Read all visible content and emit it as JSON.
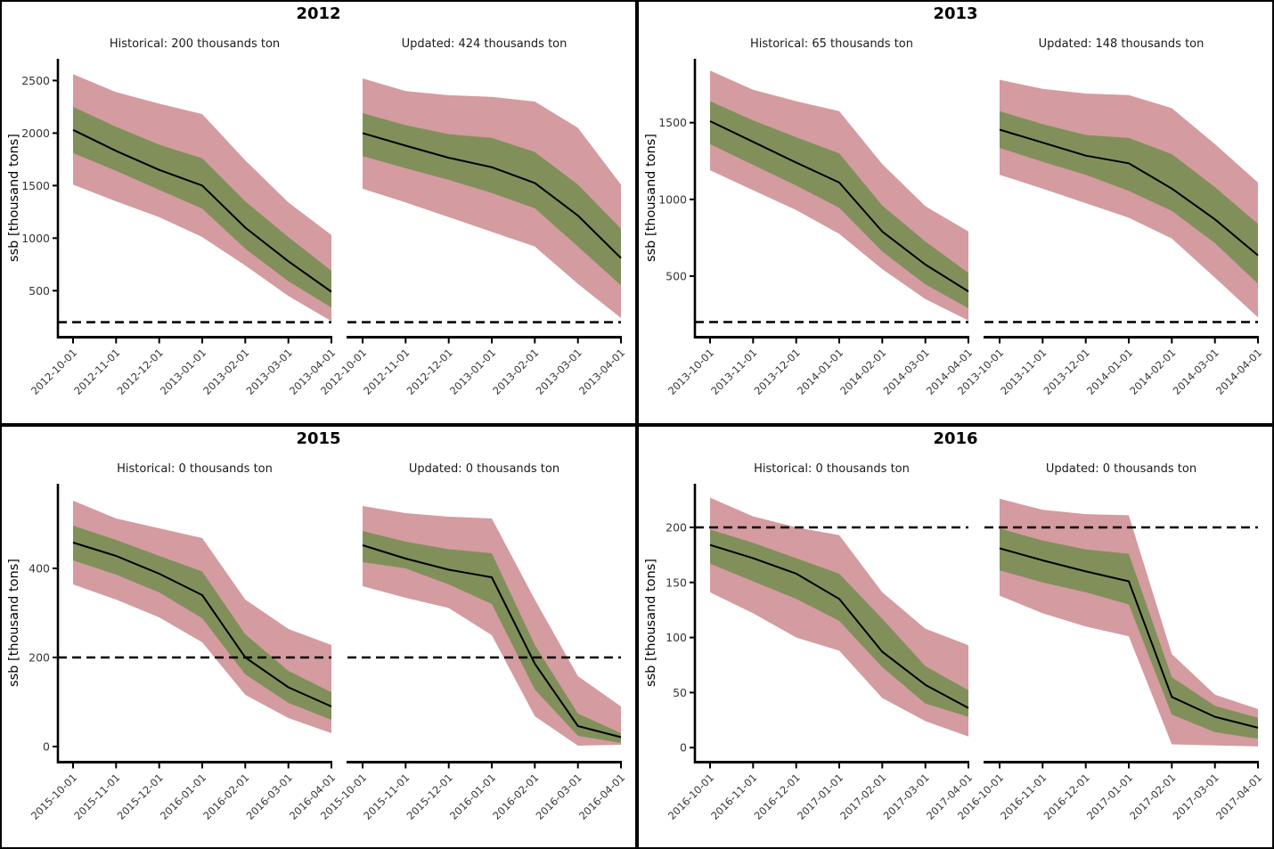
{
  "chart_data": {
    "type": "line",
    "description": "2x2 grid of seasonal ssb forecast fan charts, each year panel holding Historical and Updated scenario subplots with median line, inner and outer uncertainty ribbons and a dashed reference line",
    "ref_line_value": 200,
    "legend_position": "none",
    "grid": "off",
    "colors": {
      "outer_band": "#d49ba0",
      "inner_band": "#81905b",
      "center_line": "#000000",
      "ref_line": "#000000",
      "tick_label": "#363636",
      "axis": "#000000"
    },
    "panels": [
      {
        "year": "2012",
        "ylabel": "ssb [thousand tons]",
        "yticks": [
          500,
          1000,
          1500,
          2000,
          2500
        ],
        "ylim": [
          70,
          2690
        ],
        "subplots": [
          {
            "title": "Historical: 200 thousands ton",
            "x_labels": [
              "2012-10-01",
              "2012-11-01",
              "2012-12-01",
              "2013-01-01",
              "2013-02-01",
              "2013-03-01",
              "2013-04-01"
            ],
            "center": [
              2030,
              1830,
              1650,
              1500,
              1100,
              780,
              490
            ],
            "inner_high": [
              2250,
              2060,
              1890,
              1760,
              1350,
              1010,
              690
            ],
            "inner_low": [
              1810,
              1640,
              1460,
              1280,
              900,
              590,
              340
            ],
            "outer_high": [
              2560,
              2390,
              2280,
              2180,
              1740,
              1340,
              1030
            ],
            "outer_low": [
              1510,
              1350,
              1200,
              1010,
              740,
              450,
              210
            ]
          },
          {
            "title": "Updated: 424 thousands ton",
            "x_labels": [
              "2012-10-01",
              "2012-11-01",
              "2012-12-01",
              "2013-01-01",
              "2013-02-01",
              "2013-03-01",
              "2013-04-01"
            ],
            "center": [
              2000,
              1880,
              1765,
              1675,
              1525,
              1215,
              810
            ],
            "inner_high": [
              2190,
              2075,
              1990,
              1955,
              1820,
              1510,
              1090
            ],
            "inner_low": [
              1780,
              1665,
              1555,
              1430,
              1285,
              920,
              550
            ],
            "outer_high": [
              2520,
              2400,
              2360,
              2345,
              2300,
              2050,
              1510
            ],
            "outer_low": [
              1470,
              1340,
              1200,
              1060,
              920,
              565,
              240
            ]
          }
        ]
      },
      {
        "year": "2013",
        "ylabel": "ssb [thousand tons]",
        "yticks": [
          500,
          1000,
          1500
        ],
        "ylim": [
          110,
          1905
        ],
        "subplots": [
          {
            "title": "Historical: 65 thousands ton",
            "x_labels": [
              "2013-10-01",
              "2013-11-01",
              "2013-12-01",
              "2014-01-01",
              "2014-02-01",
              "2014-03-01",
              "2014-04-01"
            ],
            "center": [
              1510,
              1375,
              1240,
              1110,
              790,
              575,
              400
            ],
            "inner_high": [
              1640,
              1515,
              1405,
              1300,
              960,
              725,
              520
            ],
            "inner_low": [
              1360,
              1225,
              1090,
              945,
              660,
              445,
              290
            ],
            "outer_high": [
              1840,
              1715,
              1640,
              1575,
              1230,
              955,
              790
            ],
            "outer_low": [
              1190,
              1060,
              930,
              775,
              545,
              350,
              210
            ]
          },
          {
            "title": "Updated: 148 thousands ton",
            "x_labels": [
              "2013-10-01",
              "2013-11-01",
              "2013-12-01",
              "2014-01-01",
              "2014-02-01",
              "2014-03-01",
              "2014-04-01"
            ],
            "center": [
              1455,
              1370,
              1285,
              1235,
              1070,
              870,
              635
            ],
            "inner_high": [
              1575,
              1490,
              1420,
              1400,
              1295,
              1080,
              840
            ],
            "inner_low": [
              1335,
              1245,
              1160,
              1055,
              925,
              715,
              450
            ],
            "outer_high": [
              1780,
              1720,
              1690,
              1680,
              1595,
              1360,
              1110
            ],
            "outer_low": [
              1160,
              1070,
              975,
              880,
              745,
              490,
              230
            ]
          }
        ]
      },
      {
        "year": "2015",
        "ylabel": "ssb [thousand tons]",
        "yticks": [
          0,
          200,
          400
        ],
        "ylim": [
          -32,
          586
        ],
        "subplots": [
          {
            "title": "Historical: 0 thousands ton",
            "x_labels": [
              "2015-10-01",
              "2015-11-01",
              "2015-12-01",
              "2016-01-01",
              "2016-02-01",
              "2016-03-01",
              "2016-04-01"
            ],
            "center": [
              458,
              428,
              388,
              340,
              200,
              133,
              90
            ],
            "inner_high": [
              496,
              464,
              428,
              393,
              252,
              170,
              122
            ],
            "inner_low": [
              418,
              386,
              346,
              288,
              162,
              98,
              60
            ],
            "outer_high": [
              552,
              512,
              490,
              468,
              330,
              264,
              228
            ],
            "outer_low": [
              364,
              330,
              290,
              234,
              116,
              64,
              30
            ]
          },
          {
            "title": "Updated: 0 thousands ton",
            "x_labels": [
              "2015-10-01",
              "2015-11-01",
              "2015-12-01",
              "2016-01-01",
              "2016-02-01",
              "2016-03-01",
              "2016-04-01"
            ],
            "center": [
              452,
              422,
              397,
              380,
              186,
              46,
              21
            ],
            "inner_high": [
              484,
              460,
              443,
              434,
              228,
              74,
              30
            ],
            "inner_low": [
              414,
              400,
              364,
              320,
              128,
              24,
              8
            ],
            "outer_high": [
              540,
              524,
              516,
              512,
              330,
              158,
              90
            ],
            "outer_low": [
              360,
              334,
              311,
              250,
              68,
              2,
              4
            ]
          }
        ]
      },
      {
        "year": "2016",
        "ylabel": "ssb [thousand tons]",
        "yticks": [
          0,
          50,
          100,
          150,
          200
        ],
        "ylim": [
          -12,
          238
        ],
        "subplots": [
          {
            "title": "Historical: 0 thousands ton",
            "x_labels": [
              "2016-10-01",
              "2016-11-01",
              "2016-12-01",
              "2017-01-01",
              "2017-02-01",
              "2017-03-01",
              "2017-04-01"
            ],
            "center": [
              184,
              172,
              158,
              135,
              87,
              57,
              36
            ],
            "inner_high": [
              198,
              186,
              172,
              158,
              117,
              74,
              52
            ],
            "inner_low": [
              167,
              151,
              135,
              115,
              73,
              40,
              28
            ],
            "outer_high": [
              227,
              210,
              200,
              193,
              141,
              108,
              93
            ],
            "outer_low": [
              141,
              122,
              100,
              88,
              45,
              24,
              10
            ]
          },
          {
            "title": "Updated: 0 thousands ton",
            "x_labels": [
              "2016-10-01",
              "2016-11-01",
              "2016-12-01",
              "2017-01-01",
              "2017-02-01",
              "2017-03-01",
              "2017-04-01"
            ],
            "center": [
              181,
              170,
              160,
              151,
              46,
              28,
              18
            ],
            "inner_high": [
              199,
              188,
              180,
              176,
              64,
              38,
              27
            ],
            "inner_low": [
              161,
              150,
              141,
              130,
              30,
              14,
              8
            ],
            "outer_high": [
              226,
              216,
              212,
              211,
              85,
              48,
              35
            ],
            "outer_low": [
              138,
              122,
              110,
              101,
              3,
              2,
              1
            ]
          }
        ]
      }
    ]
  }
}
